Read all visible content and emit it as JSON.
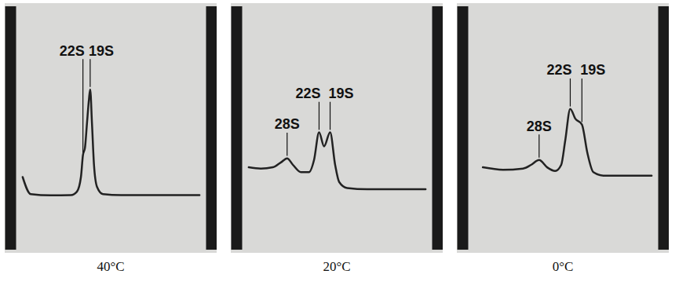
{
  "chart_data": [
    {
      "type": "line",
      "title": "40°C",
      "xlim": [
        0,
        100
      ],
      "ylim": [
        0,
        100
      ],
      "tick_labels": false,
      "color": "#222222",
      "x": [
        6,
        10,
        20,
        30,
        33,
        35,
        36,
        37,
        38,
        39,
        39.6,
        40.5,
        41.5,
        43,
        46,
        55,
        70,
        85,
        94
      ],
      "values": [
        30,
        23,
        22.5,
        22.6,
        24,
        30,
        39,
        42,
        52,
        62,
        66,
        52,
        35,
        26,
        23,
        22.6,
        22.6,
        22.6,
        22.6
      ],
      "annotations": [
        {
          "text": "22S",
          "x": 36,
          "y": 39
        },
        {
          "text": "19S",
          "x": 39.6,
          "y": 66
        }
      ]
    },
    {
      "type": "line",
      "title": "20°C",
      "xlim": [
        0,
        100
      ],
      "ylim": [
        0,
        100
      ],
      "tick_labels": false,
      "color": "#222222",
      "x": [
        6,
        12,
        18,
        22,
        25.1,
        28,
        32,
        36,
        38.5,
        41,
        43.5,
        46.5,
        49,
        51,
        55,
        65,
        80,
        94
      ],
      "values": [
        34,
        33.5,
        34,
        36,
        37.7,
        35,
        32,
        32,
        37,
        48.4,
        42.6,
        48.4,
        35,
        28,
        25.5,
        25,
        25,
        25
      ],
      "annotations": [
        {
          "text": "28S",
          "x": 25.1,
          "y": 37.7
        },
        {
          "text": "22S",
          "x": 41,
          "y": 48.4
        },
        {
          "text": "19S",
          "x": 46.5,
          "y": 48.4
        }
      ]
    },
    {
      "type": "line",
      "title": "0°C",
      "xlim": [
        0,
        100
      ],
      "ylim": [
        0,
        100
      ],
      "tick_labels": false,
      "color": "#222222",
      "x": [
        10,
        20,
        30,
        34,
        38,
        42,
        46,
        49,
        51,
        53.5,
        56,
        59.3,
        62,
        65,
        70,
        80,
        94
      ],
      "values": [
        34,
        33,
        33.5,
        35,
        37,
        34,
        32.5,
        35,
        45,
        58,
        54,
        51.6,
        40,
        32,
        30.6,
        30.6,
        30.6
      ],
      "annotations": [
        {
          "text": "28S",
          "x": 38,
          "y": 37
        },
        {
          "text": "22S",
          "x": 53.5,
          "y": 58
        },
        {
          "text": "19S",
          "x": 59.3,
          "y": 51.6
        }
      ]
    }
  ]
}
